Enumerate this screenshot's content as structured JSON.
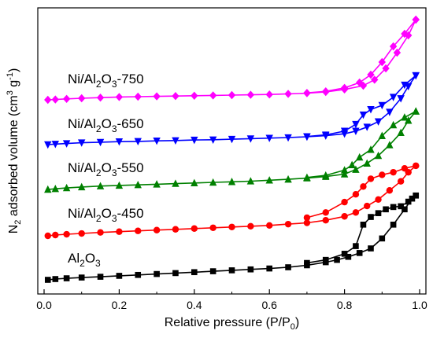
{
  "chart_data": {
    "type": "line",
    "xlabel": {
      "main": "Relative pressure (P/P",
      "sub": "0",
      "close": ")"
    },
    "ylabel": {
      "pre": "N",
      "sub": "2",
      "mid": " adsorbed volume (cm",
      "sup1": "3",
      "mid2": " g",
      "sup2": "-1",
      "close": ")"
    },
    "xlim": [
      0,
      1.0
    ],
    "x_ticks": [
      "0.0",
      "0.2",
      "0.4",
      "0.6",
      "0.8",
      "1.0"
    ],
    "y_tick_labels_shown": false,
    "grid": false,
    "legend": "inline labels",
    "series": [
      {
        "name_parts": [
          "Ni/Al",
          "2",
          "O",
          "3",
          "-750"
        ],
        "color": "#ff00ff",
        "marker": "diamond",
        "adsorption": {
          "x": [
            0.01,
            0.03,
            0.06,
            0.1,
            0.15,
            0.2,
            0.25,
            0.3,
            0.35,
            0.4,
            0.45,
            0.5,
            0.55,
            0.6,
            0.65,
            0.7,
            0.75,
            0.8,
            0.85,
            0.88,
            0.91,
            0.94,
            0.97,
            0.99
          ],
          "y": [
            0.0,
            0.1,
            0.3,
            0.5,
            0.7,
            0.9,
            1.0,
            1.1,
            1.2,
            1.3,
            1.4,
            1.5,
            1.6,
            1.7,
            1.9,
            2.1,
            2.5,
            3.3,
            4.5,
            6.4,
            10.0,
            15.0,
            20.5,
            25.5
          ]
        },
        "desorption": {
          "x": [
            0.99,
            0.96,
            0.93,
            0.9,
            0.87,
            0.84,
            0.8,
            0.75,
            0.7
          ],
          "y": [
            25.5,
            21.0,
            17.0,
            12.0,
            8.0,
            5.5,
            3.8,
            2.7,
            2.2
          ]
        }
      },
      {
        "name_parts": [
          "Ni/Al",
          "2",
          "O",
          "3",
          "-650"
        ],
        "color": "#0000ff",
        "marker": "triangle-down",
        "adsorption": {
          "x": [
            0.01,
            0.03,
            0.06,
            0.1,
            0.15,
            0.2,
            0.25,
            0.3,
            0.35,
            0.4,
            0.45,
            0.5,
            0.55,
            0.6,
            0.65,
            0.7,
            0.75,
            0.8,
            0.83,
            0.86,
            0.89,
            0.92,
            0.95,
            0.97,
            0.99
          ],
          "y": [
            0.0,
            0.2,
            0.4,
            0.7,
            0.9,
            1.1,
            1.2,
            1.4,
            1.5,
            1.7,
            1.8,
            2.0,
            2.2,
            2.4,
            2.6,
            2.9,
            3.3,
            4.0,
            5.0,
            6.5,
            8.5,
            12.0,
            17.0,
            21.5,
            25.5
          ]
        },
        "desorption": {
          "x": [
            0.99,
            0.96,
            0.93,
            0.9,
            0.87,
            0.85,
            0.83,
            0.8,
            0.75,
            0.7
          ],
          "y": [
            25.5,
            22.0,
            17.5,
            14.5,
            13.0,
            11.0,
            7.5,
            5.0,
            3.6,
            3.0
          ]
        }
      },
      {
        "name_parts": [
          "Ni/Al",
          "2",
          "O",
          "3",
          "-550"
        ],
        "color": "#008000",
        "marker": "triangle-up",
        "adsorption": {
          "x": [
            0.01,
            0.03,
            0.06,
            0.1,
            0.15,
            0.2,
            0.25,
            0.3,
            0.35,
            0.4,
            0.45,
            0.5,
            0.55,
            0.6,
            0.65,
            0.7,
            0.75,
            0.8,
            0.83,
            0.86,
            0.89,
            0.92,
            0.95,
            0.97,
            0.99
          ],
          "y": [
            0.0,
            0.2,
            0.5,
            0.8,
            1.1,
            1.3,
            1.5,
            1.7,
            1.9,
            2.1,
            2.3,
            2.5,
            2.7,
            3.0,
            3.3,
            3.7,
            4.2,
            5.0,
            6.5,
            8.5,
            11.0,
            14.5,
            18.5,
            22.5,
            25.5
          ]
        },
        "desorption": {
          "x": [
            0.99,
            0.96,
            0.93,
            0.9,
            0.87,
            0.84,
            0.82,
            0.8,
            0.75,
            0.7
          ],
          "y": [
            25.5,
            23.5,
            21.0,
            17.5,
            13.0,
            10.5,
            8.0,
            6.3,
            4.6,
            3.9
          ]
        }
      },
      {
        "name_parts": [
          "Ni/Al",
          "2",
          "O",
          "3",
          "-450"
        ],
        "color": "#ff0000",
        "marker": "circle",
        "adsorption": {
          "x": [
            0.01,
            0.03,
            0.06,
            0.1,
            0.15,
            0.2,
            0.25,
            0.3,
            0.35,
            0.4,
            0.45,
            0.5,
            0.55,
            0.6,
            0.65,
            0.7,
            0.75,
            0.8,
            0.83,
            0.86,
            0.89,
            0.92,
            0.95,
            0.97,
            0.99
          ],
          "y": [
            0.0,
            0.3,
            0.6,
            0.9,
            1.3,
            1.6,
            1.9,
            2.2,
            2.5,
            2.8,
            3.1,
            3.4,
            3.7,
            4.0,
            4.5,
            5.0,
            6.0,
            7.5,
            9.0,
            11.5,
            14.0,
            17.5,
            21.0,
            24.5,
            27.0
          ]
        },
        "desorption": {
          "x": [
            0.99,
            0.96,
            0.93,
            0.9,
            0.87,
            0.85,
            0.83,
            0.8,
            0.75,
            0.7
          ],
          "y": [
            27.0,
            26.0,
            24.5,
            23.5,
            22.0,
            19.0,
            16.0,
            13.0,
            9.0,
            7.0
          ]
        }
      },
      {
        "name_parts": [
          "Al",
          "2",
          "O",
          "3",
          ""
        ],
        "color": "#000000",
        "marker": "square",
        "adsorption": {
          "x": [
            0.01,
            0.03,
            0.06,
            0.1,
            0.15,
            0.2,
            0.25,
            0.3,
            0.35,
            0.4,
            0.45,
            0.5,
            0.55,
            0.6,
            0.65,
            0.7,
            0.75,
            0.78,
            0.81,
            0.84,
            0.87,
            0.9,
            0.93,
            0.96,
            0.98,
            0.99
          ],
          "y": [
            0.0,
            0.5,
            1.0,
            1.5,
            2.0,
            2.6,
            3.2,
            3.8,
            4.4,
            5.0,
            5.6,
            6.2,
            6.8,
            7.4,
            8.2,
            9.5,
            11.5,
            13.0,
            15.0,
            17.5,
            20.5,
            27.0,
            36.0,
            46.0,
            53.0,
            55.0
          ]
        },
        "desorption": {
          "x": [
            0.99,
            0.97,
            0.95,
            0.93,
            0.91,
            0.89,
            0.87,
            0.85,
            0.83,
            0.8,
            0.75,
            0.7
          ],
          "y": [
            55.0,
            51.0,
            48.0,
            47.5,
            46.0,
            43.5,
            41.0,
            36.0,
            22.0,
            17.0,
            13.0,
            11.0
          ]
        }
      }
    ]
  }
}
